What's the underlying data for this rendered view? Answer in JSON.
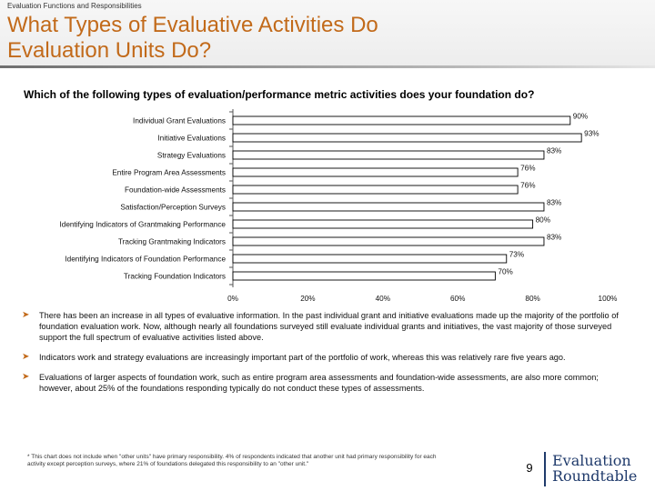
{
  "header": {
    "section": "Evaluation Functions and Responsibilities",
    "title_line1": "What Types of Evaluative Activities Do",
    "title_line2": "Evaluation Units Do?"
  },
  "question": "Which of the following types of evaluation/performance metric activities does your foundation do?",
  "chart_data": {
    "type": "bar",
    "orientation": "horizontal",
    "title": "",
    "categories": [
      "Individual Grant Evaluations",
      "Initiative Evaluations",
      "Strategy Evaluations",
      "Entire Program Area Assessments",
      "Foundation-wide Assessments",
      "Satisfaction/Perception Surveys",
      "Identifying Indicators of Grantmaking Performance",
      "Tracking Grantmaking Indicators",
      "Identifying Indicators of Foundation Performance",
      "Tracking Foundation Indicators"
    ],
    "values": [
      90,
      93,
      83,
      76,
      76,
      83,
      80,
      83,
      73,
      70
    ],
    "value_labels": [
      "90%",
      "93%",
      "83%",
      "76%",
      "76%",
      "83%",
      "80%",
      "83%",
      "73%",
      "70%"
    ],
    "xlim": [
      0,
      100
    ],
    "x_ticks": [
      "0%",
      "20%",
      "40%",
      "60%",
      "80%",
      "100%"
    ],
    "bar_color": "#ffffff",
    "bar_border_color": "#000000",
    "grid": false
  },
  "bullets": [
    "There has been an increase in all types of evaluative information. In the past individual grant and initiative evaluations made up the majority of the portfolio of foundation evaluation work.  Now, although nearly all foundations surveyed still evaluate individual grants and initiatives, the vast majority of those surveyed support the full spectrum of evaluative activities listed above.",
    "Indicators work and strategy evaluations are increasingly important part of the portfolio of work, whereas this was relatively rare five years ago.",
    "Evaluations of larger aspects of foundation work, such as entire program area assessments and foundation-wide assessments, are also more common; however, about 25% of the foundations responding typically do not conduct these types of assessments."
  ],
  "footnote": "*  This chart does not include when \"other units\" have primary responsibility. 4% of respondents indicated that another unit had primary responsibility for each activity except perception surveys, where 21% of foundations delegated this responsibility to an \"other unit.\"",
  "page_number": "9",
  "logo": {
    "line1": "Evaluation",
    "line2": "Roundtable"
  },
  "colors": {
    "accent": "#c26a1a",
    "logo": "#1f3a6b"
  }
}
